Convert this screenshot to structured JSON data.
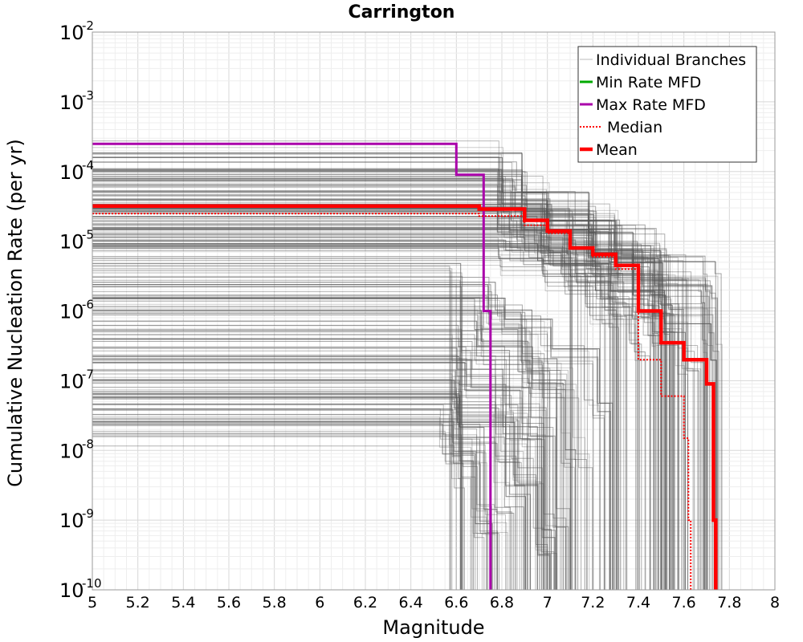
{
  "chart_data": {
    "type": "line",
    "title": "Carrington",
    "xlabel": "Magnitude",
    "ylabel": "Cumulative Nucleation Rate (per yr)",
    "x_scale": "linear",
    "y_scale": "log",
    "xlim": [
      5,
      8
    ],
    "ylim": [
      1e-10,
      0.01
    ],
    "grid": true,
    "legend_position": "top-right",
    "x_ticks": [
      "5",
      "5.2",
      "5.4",
      "5.6",
      "5.8",
      "6",
      "6.2",
      "6.4",
      "6.6",
      "6.8",
      "7",
      "7.2",
      "7.4",
      "7.6",
      "7.8",
      "8"
    ],
    "y_ticks": [
      {
        "base": "10",
        "exp": "-2",
        "value": 0.01
      },
      {
        "base": "10",
        "exp": "-3",
        "value": 0.001
      },
      {
        "base": "10",
        "exp": "-4",
        "value": 0.0001
      },
      {
        "base": "10",
        "exp": "-5",
        "value": 1e-05
      },
      {
        "base": "10",
        "exp": "-6",
        "value": 1e-06
      },
      {
        "base": "10",
        "exp": "-7",
        "value": 1e-07
      },
      {
        "base": "10",
        "exp": "-8",
        "value": 1e-08
      },
      {
        "base": "10",
        "exp": "-9",
        "value": 1e-09
      },
      {
        "base": "10",
        "exp": "-10",
        "value": 1e-10
      }
    ],
    "series": [
      {
        "name": "Individual Branches",
        "color": "#555555",
        "style": "thin",
        "note_visual": "hundreds of grey branch curves",
        "samples": [
          {
            "x": [
              5,
              6.5,
              6.8,
              7.0,
              7.3,
              7.5,
              7.6
            ],
            "y": [
              0.00016,
              0.00016,
              5e-05,
              2e-05,
              5e-06,
              5e-07,
              1e-10
            ]
          },
          {
            "x": [
              5,
              6.6,
              6.9,
              7.2,
              7.4,
              7.55
            ],
            "y": [
              0.00011,
              0.00011,
              3e-05,
              8e-06,
              1e-06,
              1e-10
            ]
          },
          {
            "x": [
              5,
              6.55,
              6.85,
              7.1,
              7.4,
              7.7,
              7.72
            ],
            "y": [
              8e-05,
              8e-05,
              3e-05,
              1e-05,
              3e-06,
              2e-06,
              1e-10
            ]
          },
          {
            "x": [
              5,
              6.6,
              6.8,
              7.0,
              7.2,
              7.28
            ],
            "y": [
              6e-05,
              6e-05,
              2e-05,
              1e-05,
              3e-06,
              1e-10
            ]
          },
          {
            "x": [
              5,
              6.5,
              6.9,
              7.2,
              7.5,
              7.72
            ],
            "y": [
              5e-05,
              5e-05,
              2.5e-05,
              1e-05,
              4e-06,
              1e-10
            ]
          },
          {
            "x": [
              5,
              6.6,
              6.8,
              7.0,
              7.1,
              7.15
            ],
            "y": [
              4e-05,
              4e-05,
              2e-05,
              1e-05,
              5e-06,
              1e-10
            ]
          },
          {
            "x": [
              5,
              6.7,
              7.0,
              7.3,
              7.5,
              7.55
            ],
            "y": [
              3.2e-05,
              3.2e-05,
              1.6e-05,
              6e-06,
              1e-06,
              1e-10
            ]
          },
          {
            "x": [
              5,
              6.6,
              6.9,
              7.2,
              7.45,
              7.5
            ],
            "y": [
              2.6e-05,
              2.6e-05,
              1.4e-05,
              5e-06,
              1e-06,
              1e-10
            ]
          },
          {
            "x": [
              5,
              6.7,
              7.0,
              7.3,
              7.6,
              7.65
            ],
            "y": [
              2.1e-05,
              2.1e-05,
              1e-05,
              4e-06,
              2e-07,
              1e-10
            ]
          },
          {
            "x": [
              5,
              6.6,
              6.85,
              7.1,
              7.3,
              7.35
            ],
            "y": [
              1.7e-05,
              1.7e-05,
              9e-06,
              3e-06,
              1e-06,
              1e-10
            ]
          },
          {
            "x": [
              5,
              6.7,
              6.95,
              7.2,
              7.5,
              7.7,
              7.72
            ],
            "y": [
              1.4e-05,
              1.4e-05,
              8e-06,
              3e-06,
              1e-06,
              3e-07,
              1e-10
            ]
          },
          {
            "x": [
              5,
              6.6,
              6.9,
              7.1,
              7.25,
              7.3
            ],
            "y": [
              1.1e-05,
              1.1e-05,
              7e-06,
              3e-06,
              1e-06,
              1e-10
            ]
          },
          {
            "x": [
              5,
              6.7,
              7.0,
              7.3,
              7.5,
              7.52
            ],
            "y": [
              9e-06,
              9e-06,
              5e-06,
              2e-06,
              5e-07,
              1e-10
            ]
          },
          {
            "x": [
              5,
              6.6,
              6.8,
              7.0,
              7.2,
              7.4,
              7.45
            ],
            "y": [
              7e-06,
              7e-06,
              5e-06,
              3e-06,
              1e-06,
              3e-07,
              1e-10
            ]
          },
          {
            "x": [
              5,
              6.5,
              6.75,
              6.9,
              7.0
            ],
            "y": [
              2.5e-06,
              2.5e-06,
              1e-06,
              2e-07,
              1e-10
            ]
          },
          {
            "x": [
              5,
              6.5,
              6.8,
              7.0,
              7.2,
              7.25
            ],
            "y": [
              1.6e-06,
              1.6e-06,
              8e-07,
              3e-07,
              5e-08,
              1e-10
            ]
          },
          {
            "x": [
              5,
              6.5,
              6.7,
              6.9,
              7.05
            ],
            "y": [
              1.1e-06,
              1.1e-06,
              4e-07,
              1e-07,
              1e-10
            ]
          },
          {
            "x": [
              5,
              6.5,
              6.7,
              6.95,
              7.1,
              7.15
            ],
            "y": [
              7e-07,
              7e-07,
              3e-07,
              1e-07,
              1e-08,
              1e-10
            ]
          },
          {
            "x": [
              5,
              6.5,
              6.6,
              6.8,
              6.95
            ],
            "y": [
              4e-07,
              4e-07,
              2e-07,
              3e-08,
              1e-10
            ]
          },
          {
            "x": [
              5,
              6.5,
              6.65,
              6.9,
              7.0,
              7.05
            ],
            "y": [
              2.5e-07,
              2.5e-07,
              1e-07,
              2e-08,
              1e-09,
              1e-10
            ]
          },
          {
            "x": [
              5,
              6.5,
              6.6,
              6.8,
              6.9
            ],
            "y": [
              1.5e-07,
              1.5e-07,
              6e-08,
              1e-08,
              1e-10
            ]
          },
          {
            "x": [
              5,
              6.5,
              6.6,
              6.85,
              6.95,
              7.0
            ],
            "y": [
              9e-08,
              9e-08,
              4e-08,
              5e-09,
              5e-10,
              1e-10
            ]
          },
          {
            "x": [
              5,
              6.5,
              6.6,
              6.8,
              6.88
            ],
            "y": [
              6e-08,
              6e-08,
              2e-08,
              2e-09,
              1e-10
            ]
          },
          {
            "x": [
              5,
              6.5,
              6.6,
              6.7,
              6.75
            ],
            "y": [
              4e-08,
              4e-08,
              1.5e-08,
              1e-09,
              1e-10
            ]
          },
          {
            "x": [
              5,
              6.5,
              6.55,
              6.7,
              6.78
            ],
            "y": [
              2.7e-08,
              2.7e-08,
              1e-08,
              1e-09,
              1e-10
            ]
          },
          {
            "x": [
              5,
              6.5,
              6.6,
              6.65
            ],
            "y": [
              2e-08,
              2e-08,
              5e-09,
              1e-10
            ]
          },
          {
            "x": [
              5,
              6.5,
              6.6
            ],
            "y": [
              3.5e-06,
              3.5e-06,
              1e-10
            ]
          }
        ]
      },
      {
        "name": "Min Rate MFD",
        "color": "#00aa00",
        "x": [
          5,
          6.5,
          6.6,
          6.7
        ],
        "y": [
          1e-10,
          1e-10,
          1e-10,
          1e-10
        ]
      },
      {
        "name": "Max Rate MFD",
        "color": "#aa00aa",
        "x": [
          5,
          6.5,
          6.6,
          6.7,
          6.72,
          6.75
        ],
        "y": [
          0.00025,
          0.00025,
          9e-05,
          9e-05,
          1e-06,
          1e-10
        ]
      },
      {
        "name": "Median",
        "color": "#ff0000",
        "style": "dotted",
        "x": [
          5,
          6.5,
          6.7,
          6.9,
          7.0,
          7.1,
          7.2,
          7.3,
          7.4,
          7.5,
          7.6,
          7.62,
          7.63
        ],
        "y": [
          2.5e-05,
          2.5e-05,
          2.3e-05,
          1.7e-05,
          1.3e-05,
          8e-06,
          6e-06,
          4e-06,
          2e-07,
          6e-08,
          1.5e-08,
          1e-09,
          1e-10
        ]
      },
      {
        "name": "Mean",
        "color": "#ff0000",
        "style": "thick",
        "x": [
          5,
          6.5,
          6.7,
          6.9,
          7.0,
          7.1,
          7.2,
          7.3,
          7.4,
          7.5,
          7.6,
          7.7,
          7.73,
          7.74
        ],
        "y": [
          3.2e-05,
          3.2e-05,
          2.9e-05,
          2e-05,
          1.4e-05,
          8e-06,
          6.5e-06,
          4.5e-06,
          1e-06,
          3.5e-07,
          2e-07,
          9e-08,
          1e-09,
          1e-10
        ]
      }
    ]
  }
}
